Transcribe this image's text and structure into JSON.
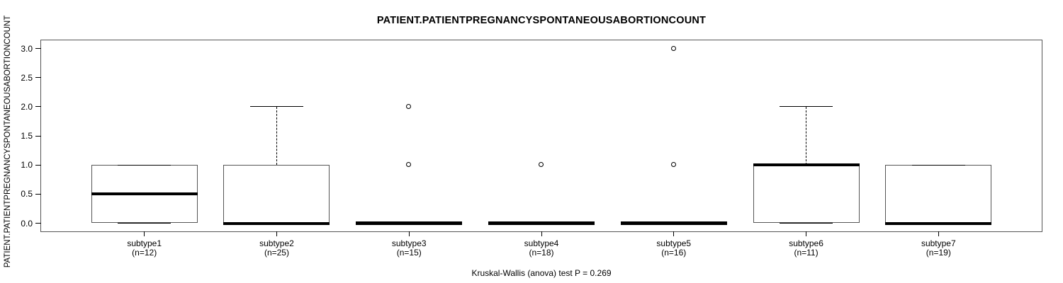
{
  "chart_data": {
    "type": "boxplot",
    "title": "PATIENT.PATIENTPREGNANCYSPONTANEOUSABORTIONCOUNT",
    "ylabel": "PATIENT.PATIENTPREGNANCYSPONTANEOUSABORTIONCOUNT",
    "xlabel": "",
    "annotation": "Kruskal-Wallis (anova) test P = 0.269",
    "ylim": [
      0,
      3
    ],
    "yticks": [
      0.0,
      0.5,
      1.0,
      1.5,
      2.0,
      2.5,
      3.0
    ],
    "ytick_labels": [
      "0.0",
      "0.5",
      "1.0",
      "1.5",
      "2.0",
      "2.5",
      "3.0"
    ],
    "grid": "off",
    "legend": "none",
    "groups": [
      {
        "label": "subtype1",
        "sublabel": "(n=12)",
        "n": 12,
        "q1": 0,
        "median": 0.5,
        "q3": 1,
        "whisker_low": 0,
        "whisker_high": 1,
        "outliers": []
      },
      {
        "label": "subtype2",
        "sublabel": "(n=25)",
        "n": 25,
        "q1": 0,
        "median": 0,
        "q3": 1,
        "whisker_low": 0,
        "whisker_high": 2,
        "outliers": []
      },
      {
        "label": "subtype3",
        "sublabel": "(n=15)",
        "n": 15,
        "q1": 0,
        "median": 0,
        "q3": 0,
        "whisker_low": 0,
        "whisker_high": 0,
        "outliers": [
          1,
          2
        ]
      },
      {
        "label": "subtype4",
        "sublabel": "(n=18)",
        "n": 18,
        "q1": 0,
        "median": 0,
        "q3": 0,
        "whisker_low": 0,
        "whisker_high": 0,
        "outliers": [
          1
        ]
      },
      {
        "label": "subtype5",
        "sublabel": "(n=16)",
        "n": 16,
        "q1": 0,
        "median": 0,
        "q3": 0,
        "whisker_low": 0,
        "whisker_high": 0,
        "outliers": [
          1,
          3
        ]
      },
      {
        "label": "subtype6",
        "sublabel": "(n=11)",
        "n": 11,
        "q1": 0,
        "median": 1,
        "q3": 1,
        "whisker_low": 0,
        "whisker_high": 2,
        "outliers": []
      },
      {
        "label": "subtype7",
        "sublabel": "(n=19)",
        "n": 19,
        "q1": 0,
        "median": 0,
        "q3": 1,
        "whisker_low": 0,
        "whisker_high": 1,
        "outliers": []
      }
    ]
  },
  "colors": {
    "line": "#000000",
    "box_border": "#555555",
    "background": "#ffffff"
  }
}
